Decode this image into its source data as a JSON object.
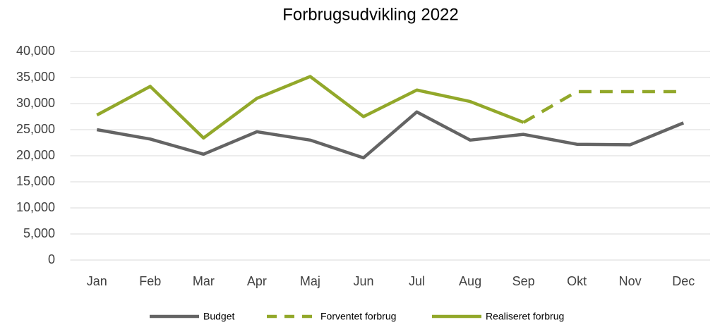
{
  "chart_data": {
    "type": "line",
    "title": "Forbrugsudvikling 2022",
    "categories": [
      "Jan",
      "Feb",
      "Mar",
      "Apr",
      "Maj",
      "Jun",
      "Jul",
      "Aug",
      "Sep",
      "Okt",
      "Nov",
      "Dec"
    ],
    "series": [
      {
        "name": "Budget",
        "color": "#646464",
        "dashed": false,
        "values": [
          25000,
          23200,
          20300,
          24600,
          23000,
          19600,
          28400,
          23000,
          24100,
          22200,
          22100,
          26300
        ]
      },
      {
        "name": "Forventet forbrug",
        "color": "#92a82a",
        "dashed": true,
        "values": [
          null,
          null,
          null,
          null,
          null,
          null,
          null,
          null,
          26400,
          32300,
          32300,
          32300
        ]
      },
      {
        "name": "Realiseret forbrug",
        "color": "#92a82a",
        "dashed": false,
        "values": [
          27800,
          33300,
          23400,
          31000,
          35200,
          27500,
          32600,
          30400,
          26400,
          null,
          null,
          null
        ]
      }
    ],
    "ylim": [
      0,
      40000
    ],
    "yticks": [
      0,
      {
        "value": 5000,
        "label": "5,000"
      },
      {
        "value": 10000,
        "label": "10,000"
      },
      {
        "value": 15000,
        "label": "15,000"
      },
      {
        "value": 20000,
        "label": "20,000"
      },
      {
        "value": 25000,
        "label": "25,000"
      },
      {
        "value": 30000,
        "label": "30,000"
      },
      {
        "value": 35000,
        "label": "35,000"
      },
      {
        "value": 40000,
        "label": "40,000"
      }
    ],
    "grid": true,
    "legend": "bottom"
  }
}
